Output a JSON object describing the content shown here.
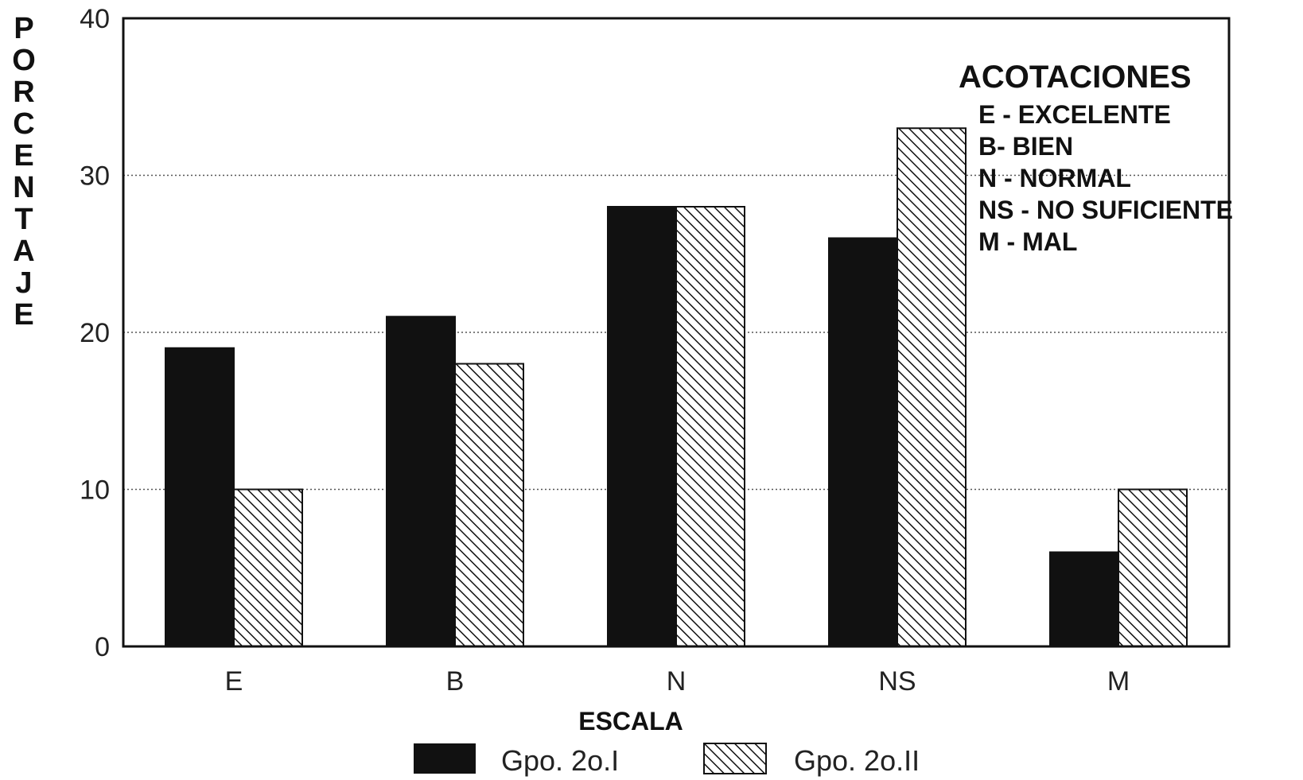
{
  "chart_data": {
    "type": "bar",
    "categories": [
      "E",
      "B",
      "N",
      "NS",
      "M"
    ],
    "series": [
      {
        "name": "Gpo. 2o.I",
        "values": [
          19,
          21,
          28,
          26,
          6
        ],
        "fill": "solid",
        "color": "#111111"
      },
      {
        "name": "Gpo. 2o.II",
        "values": [
          10,
          18,
          28,
          33,
          10
        ],
        "fill": "hatched",
        "color": "#111111"
      }
    ],
    "xlabel": "ESCALA",
    "ylabel": "PORCENTAJE",
    "ylim": [
      0,
      40
    ],
    "yticks": [
      0,
      10,
      20,
      30,
      40
    ],
    "grid": "horizontal dotted at 10, 20, 30",
    "legend_position": "bottom",
    "annotations": {
      "title": "ACOTACIONES",
      "items": [
        "E - EXCELENTE",
        "B- BIEN",
        "N - NORMAL",
        "NS - NO SUFICIENTE",
        "M - MAL"
      ]
    }
  }
}
